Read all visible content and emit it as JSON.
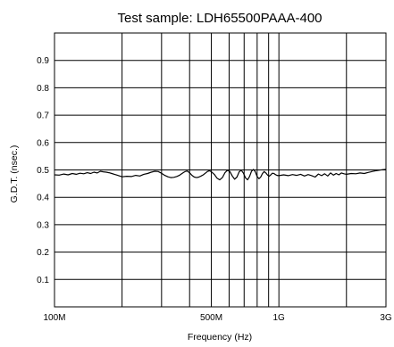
{
  "chart_data": {
    "type": "line",
    "title": "Test sample: LDH65500PAAA-400",
    "xlabel": "Frequency (Hz)",
    "ylabel": "G.D.T. (nsec.)",
    "xscale": "log",
    "xlim": [
      100000000,
      3000000000
    ],
    "ylim": [
      0,
      1.0
    ],
    "grid": true,
    "y_ticks": [
      {
        "value": 0.1,
        "label": "0.1"
      },
      {
        "value": 0.2,
        "label": "0.2"
      },
      {
        "value": 0.3,
        "label": "0.3"
      },
      {
        "value": 0.4,
        "label": "0.4"
      },
      {
        "value": 0.5,
        "label": "0.5"
      },
      {
        "value": 0.6,
        "label": "0.6"
      },
      {
        "value": 0.7,
        "label": "0.7"
      },
      {
        "value": 0.8,
        "label": "0.8"
      },
      {
        "value": 0.9,
        "label": "0.9"
      }
    ],
    "x_ticks": [
      {
        "value": 100000000,
        "label": "100M"
      },
      {
        "value": 500000000,
        "label": "500M"
      },
      {
        "value": 1000000000,
        "label": "1G"
      },
      {
        "value": 3000000000,
        "label": "3G"
      }
    ],
    "x_gridlines": [
      200000000,
      300000000,
      400000000,
      500000000,
      600000000,
      700000000,
      800000000,
      900000000,
      1000000000,
      2000000000
    ],
    "series": [
      {
        "color": "#000000",
        "x": [
          100000000,
          105000000,
          110000000,
          115000000,
          120000000,
          125000000,
          130000000,
          135000000,
          140000000,
          145000000,
          150000000,
          155000000,
          160000000,
          165000000,
          170000000,
          175000000,
          180000000,
          190000000,
          200000000,
          210000000,
          220000000,
          230000000,
          240000000,
          250000000,
          260000000,
          270000000,
          280000000,
          290000000,
          300000000,
          310000000,
          320000000,
          330000000,
          340000000,
          350000000,
          360000000,
          370000000,
          380000000,
          390000000,
          400000000,
          410000000,
          420000000,
          430000000,
          440000000,
          450000000,
          460000000,
          470000000,
          480000000,
          490000000,
          500000000,
          515000000,
          530000000,
          545000000,
          560000000,
          575000000,
          590000000,
          605000000,
          620000000,
          635000000,
          650000000,
          665000000,
          680000000,
          695000000,
          710000000,
          725000000,
          740000000,
          755000000,
          770000000,
          785000000,
          800000000,
          815000000,
          830000000,
          845000000,
          860000000,
          875000000,
          890000000,
          905000000,
          920000000,
          935000000,
          950000000,
          965000000,
          980000000,
          1000000000,
          1050000000,
          1100000000,
          1150000000,
          1200000000,
          1250000000,
          1300000000,
          1350000000,
          1400000000,
          1450000000,
          1500000000,
          1550000000,
          1600000000,
          1650000000,
          1700000000,
          1750000000,
          1800000000,
          1850000000,
          1900000000,
          1950000000,
          2000000000,
          2100000000,
          2200000000,
          2300000000,
          2400000000,
          2500000000,
          2600000000,
          2700000000,
          2800000000,
          2900000000,
          3000000000
        ],
        "y": [
          0.482,
          0.481,
          0.485,
          0.482,
          0.487,
          0.484,
          0.488,
          0.486,
          0.49,
          0.487,
          0.492,
          0.489,
          0.495,
          0.493,
          0.492,
          0.49,
          0.487,
          0.481,
          0.475,
          0.477,
          0.476,
          0.48,
          0.478,
          0.484,
          0.487,
          0.492,
          0.495,
          0.494,
          0.488,
          0.48,
          0.475,
          0.472,
          0.473,
          0.476,
          0.48,
          0.487,
          0.493,
          0.496,
          0.49,
          0.48,
          0.474,
          0.472,
          0.474,
          0.478,
          0.482,
          0.488,
          0.494,
          0.497,
          0.493,
          0.484,
          0.47,
          0.464,
          0.472,
          0.49,
          0.499,
          0.494,
          0.478,
          0.466,
          0.474,
          0.493,
          0.499,
          0.488,
          0.471,
          0.464,
          0.476,
          0.495,
          0.502,
          0.493,
          0.476,
          0.468,
          0.474,
          0.487,
          0.494,
          0.489,
          0.481,
          0.477,
          0.482,
          0.488,
          0.487,
          0.483,
          0.48,
          0.479,
          0.482,
          0.479,
          0.483,
          0.48,
          0.484,
          0.478,
          0.483,
          0.479,
          0.474,
          0.485,
          0.479,
          0.486,
          0.478,
          0.489,
          0.481,
          0.487,
          0.482,
          0.489,
          0.486,
          0.484,
          0.487,
          0.486,
          0.489,
          0.487,
          0.491,
          0.494,
          0.497,
          0.499,
          0.501,
          0.502
        ]
      }
    ]
  }
}
